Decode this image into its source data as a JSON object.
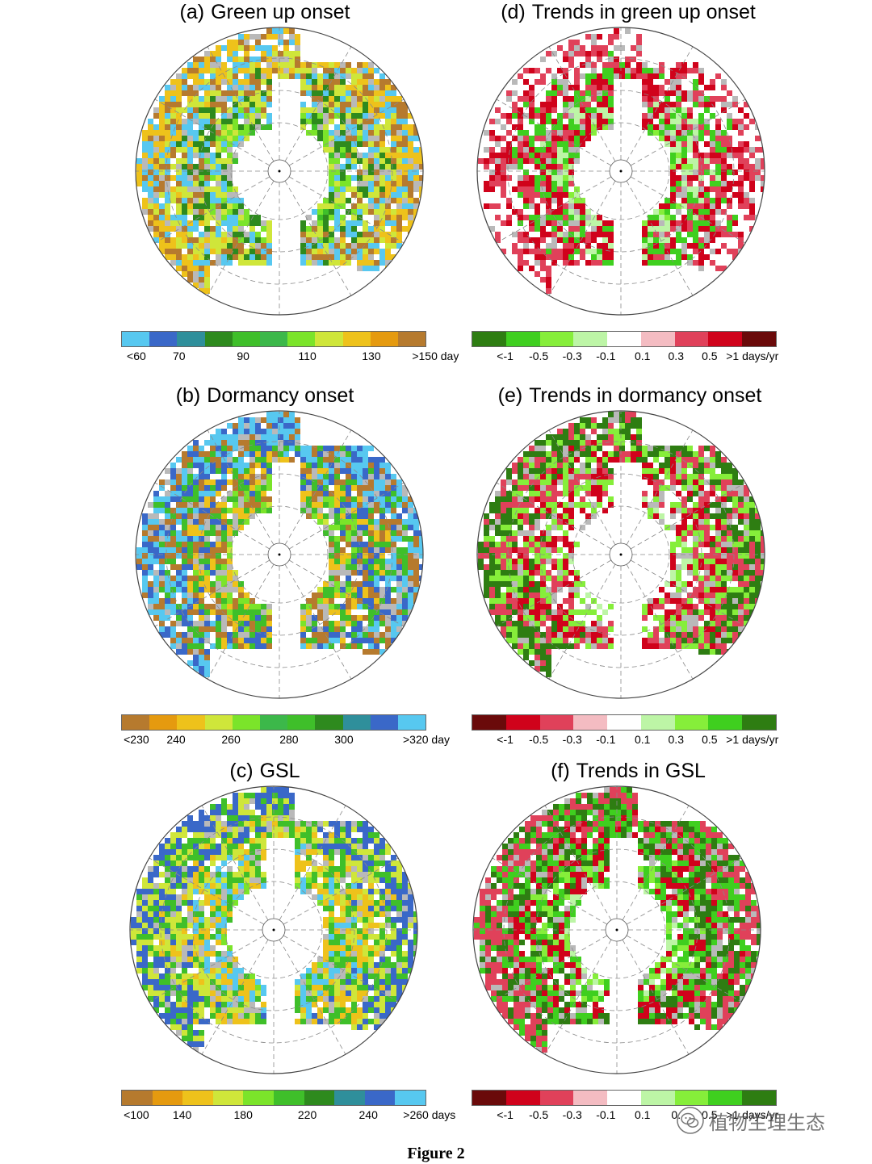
{
  "panels": [
    {
      "id": "a",
      "label": "(a)",
      "title": "Green up onset",
      "variable": "green_up_onset",
      "colorbar": {
        "colors": [
          "#57c8f0",
          "#3a68c8",
          "#2f8f9b",
          "#2e8a1e",
          "#3fbf2a",
          "#3cb84a",
          "#7be42a",
          "#cfe63a",
          "#eec21b",
          "#e59a0f",
          "#b67a2e"
        ],
        "ticks": [
          "<60",
          "70",
          "90",
          "110",
          "130",
          ">150 day"
        ]
      },
      "map": {
        "dominant": [
          "#3fbf2a",
          "#7be42a",
          "#2e8a1e",
          "#cfe63a",
          "#57c8f0",
          "#b67a2e",
          "#eec21b"
        ],
        "land_fraction": 0.58,
        "gray_fraction": 0.1
      }
    },
    {
      "id": "d",
      "label": "(d)",
      "title": "Trends in green up onset",
      "variable": "trend_green_up_onset",
      "colorbar": {
        "colors": [
          "#2e7d12",
          "#3fcf1f",
          "#86ee3a",
          "#bdf5a6",
          "#ffffff",
          "#f4bcc2",
          "#e0415a",
          "#d0021b",
          "#6a0a0a"
        ],
        "ticks": [
          "<-1",
          "-0.5",
          "-0.3",
          "-0.1",
          "0.1",
          "0.3",
          "0.5",
          ">1 days/yr"
        ]
      },
      "map": {
        "dominant": [
          "#86ee3a",
          "#bdf5a6",
          "#3fcf1f",
          "#d0021b",
          "#e0415a",
          "#ffffff"
        ],
        "land_fraction": 0.58,
        "gray_fraction": 0.1
      }
    },
    {
      "id": "b",
      "label": "(b)",
      "title": "Dormancy onset",
      "variable": "dormancy_onset",
      "colorbar": {
        "colors": [
          "#b67a2e",
          "#e59a0f",
          "#eec21b",
          "#cfe63a",
          "#7be42a",
          "#3cb84a",
          "#3fbf2a",
          "#2e8a1e",
          "#2f8f9b",
          "#3a68c8",
          "#57c8f0"
        ],
        "ticks": [
          "<230",
          "240",
          "260",
          "280",
          "300",
          ">320 day"
        ]
      },
      "map": {
        "dominant": [
          "#cfe63a",
          "#7be42a",
          "#eec21b",
          "#3fbf2a",
          "#b67a2e",
          "#3a68c8",
          "#57c8f0"
        ],
        "land_fraction": 0.58,
        "gray_fraction": 0.1
      }
    },
    {
      "id": "e",
      "label": "(e)",
      "title": "Trends in dormancy onset",
      "variable": "trend_dormancy_onset",
      "colorbar": {
        "colors": [
          "#6a0a0a",
          "#d0021b",
          "#e0415a",
          "#f4bcc2",
          "#ffffff",
          "#bdf5a6",
          "#86ee3a",
          "#3fcf1f",
          "#2e7d12"
        ],
        "ticks": [
          "<-1",
          "-0.5",
          "-0.3",
          "-0.1",
          "0.1",
          "0.3",
          "0.5",
          ">1 days/yr"
        ]
      },
      "map": {
        "dominant": [
          "#bdf5a6",
          "#ffffff",
          "#d0021b",
          "#86ee3a",
          "#e0415a",
          "#2e7d12"
        ],
        "land_fraction": 0.58,
        "gray_fraction": 0.1
      }
    },
    {
      "id": "c",
      "label": "(c)",
      "title": "GSL",
      "variable": "gsl",
      "colorbar": {
        "colors": [
          "#b67a2e",
          "#e59a0f",
          "#eec21b",
          "#cfe63a",
          "#7be42a",
          "#3fbf2a",
          "#2e8a1e",
          "#2f8f9b",
          "#3a68c8",
          "#57c8f0"
        ],
        "ticks": [
          "<100",
          "140",
          "180",
          "220",
          "240",
          ">260 days"
        ]
      },
      "map": {
        "dominant": [
          "#7be42a",
          "#57c8f0",
          "#eec21b",
          "#3fbf2a",
          "#cfe63a",
          "#3a68c8"
        ],
        "land_fraction": 0.58,
        "gray_fraction": 0.1
      }
    },
    {
      "id": "f",
      "label": "(f)",
      "title": "Trends in GSL",
      "variable": "trend_gsl",
      "colorbar": {
        "colors": [
          "#6a0a0a",
          "#d0021b",
          "#e0415a",
          "#f4bcc2",
          "#ffffff",
          "#bdf5a6",
          "#86ee3a",
          "#3fcf1f",
          "#2e7d12"
        ],
        "ticks": [
          "<-1",
          "-0.5",
          "-0.3",
          "-0.1",
          "0.1",
          "0.",
          "0.5",
          ">1 days/yr"
        ]
      },
      "map": {
        "dominant": [
          "#bdf5a6",
          "#86ee3a",
          "#d0021b",
          "#3fcf1f",
          "#2e7d12",
          "#e0415a"
        ],
        "land_fraction": 0.58,
        "gray_fraction": 0.1
      }
    }
  ],
  "caption": "Figure 2",
  "watermark": {
    "text": "植物生理生态",
    "icon": "wechat-icon"
  }
}
